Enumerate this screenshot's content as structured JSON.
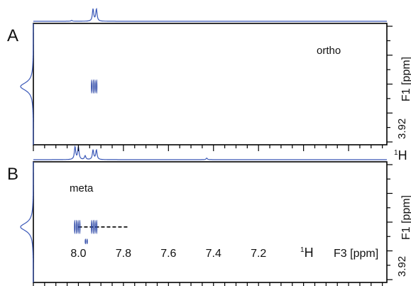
{
  "chart_data": {
    "type": "2D NMR spectra",
    "panels": [
      {
        "label": "A",
        "annotation": "ortho",
        "f1_tick_label": "3.92",
        "f1_axis_label": "F1 [ppm]",
        "f2_axis_label_partial": "1H",
        "top_projection_peaks": [
          {
            "ppm": 8.03,
            "height": 0.07
          },
          {
            "ppm": 7.935,
            "height": 0.95
          },
          {
            "ppm": 7.92,
            "height": 0.95
          }
        ],
        "side_projection": {
          "center_fraction": 0.52,
          "height": 0.9
        },
        "cross_peaks": [
          {
            "f2_ppm": 7.93,
            "f1_fraction": 0.52,
            "lines": 4
          }
        ],
        "dashed_line": null
      },
      {
        "label": "B",
        "annotation": "meta",
        "f1_tick_label": "3.92",
        "f1_axis_label": "F1 [ppm]",
        "top_projection_peaks": [
          {
            "ppm": 8.015,
            "height": 1.0
          },
          {
            "ppm": 8.0,
            "height": 1.0
          },
          {
            "ppm": 7.97,
            "height": 0.3
          },
          {
            "ppm": 7.43,
            "height": 0.12
          },
          {
            "ppm": 7.935,
            "height": 0.75
          },
          {
            "ppm": 7.92,
            "height": 0.75
          }
        ],
        "side_projection": {
          "center_fraction": 0.54,
          "height": 0.9
        },
        "cross_peaks": [
          {
            "f2_ppm": 8.005,
            "f1_fraction": 0.54,
            "lines": 4
          },
          {
            "f2_ppm": 7.965,
            "f1_fraction": 0.66,
            "lines": 2,
            "size": "small"
          },
          {
            "f2_ppm": 7.93,
            "f1_fraction": 0.54,
            "lines": 4
          }
        ],
        "dashed_line": {
          "from_ppm": 8.0,
          "to_ppm": 7.78,
          "f1_fraction": 0.54
        }
      }
    ],
    "x_axis": {
      "tick_labels": [
        "8.0",
        "7.8",
        "7.6",
        "7.4",
        "7.2"
      ],
      "tick_values": [
        8.0,
        7.8,
        7.6,
        7.4,
        7.2
      ],
      "label": "F3 [ppm]",
      "nucleus_label": "1H",
      "range": [
        8.2,
        6.63
      ],
      "reversed": true
    },
    "colors": {
      "trace": "#3a58b8",
      "crosspeak": "#2f4aa8",
      "axis": "#000000",
      "dash": "#000000"
    }
  }
}
